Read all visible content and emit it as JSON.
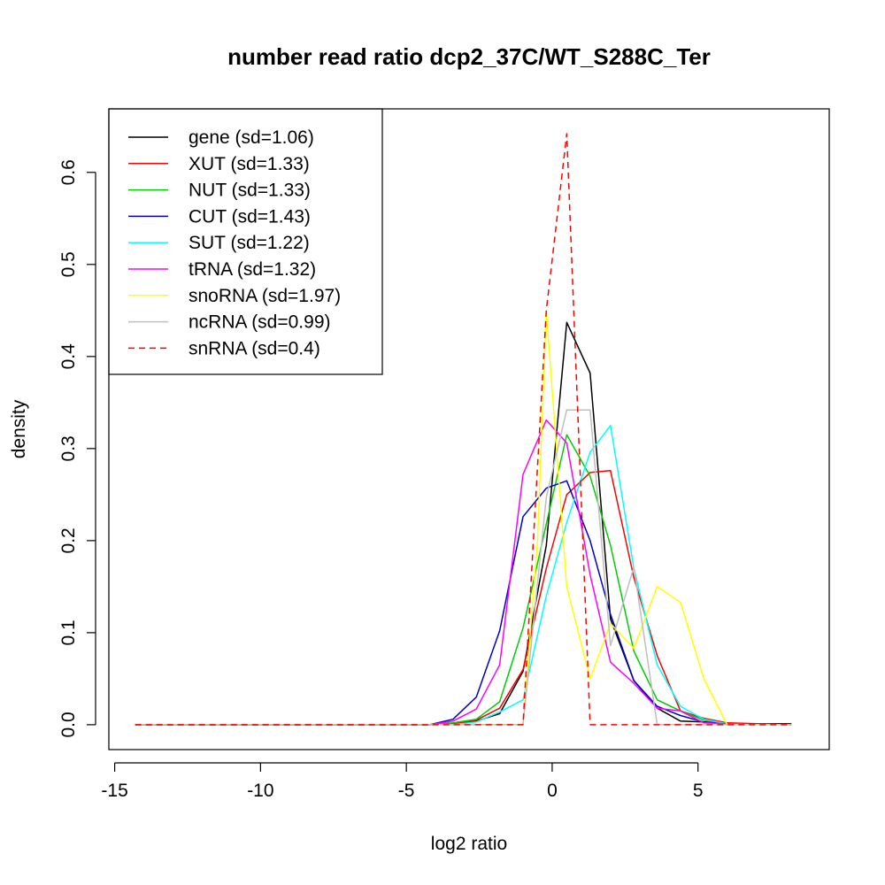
{
  "chart_data": {
    "type": "line",
    "title": "number read ratio dcp2_37C/WT_S288C_Ter",
    "xlabel": "log2 ratio",
    "ylabel": "density",
    "xlim": [
      -15.2,
      9.5
    ],
    "ylim": [
      -0.027,
      0.669
    ],
    "xticks": [
      -15,
      -10,
      -5,
      0,
      5
    ],
    "yticks": [
      0.0,
      0.1,
      0.2,
      0.3,
      0.4,
      0.5,
      0.6
    ],
    "xtick_labels": [
      "-15",
      "-10",
      "-5",
      "0",
      "5"
    ],
    "ytick_labels": [
      "0.0",
      "0.1",
      "0.2",
      "0.3",
      "0.4",
      "0.5",
      "0.6"
    ],
    "grid": false,
    "legend_position": "top-left",
    "series": [
      {
        "name": "gene (sd=1.06)",
        "color": "#000000",
        "dash": false,
        "x": [
          -14.3,
          -4.2,
          -3.4,
          -2.6,
          -1.8,
          -1.0,
          -0.2,
          0.5,
          1.3,
          2.0,
          2.8,
          3.6,
          4.4,
          5.2,
          6.0,
          8.2
        ],
        "y": [
          0.0,
          0.0,
          0.001,
          0.004,
          0.012,
          0.058,
          0.195,
          0.437,
          0.382,
          0.115,
          0.048,
          0.018,
          0.004,
          0.003,
          0.001,
          0.001
        ]
      },
      {
        "name": "XUT (sd=1.33)",
        "color": "#ff0000",
        "dash": false,
        "x": [
          -14.3,
          -4.2,
          -3.4,
          -2.6,
          -1.8,
          -1.0,
          -0.2,
          0.5,
          1.3,
          2.0,
          2.8,
          3.6,
          4.4,
          5.2,
          6.0,
          8.2
        ],
        "y": [
          0.0,
          0.0,
          0.001,
          0.005,
          0.018,
          0.06,
          0.17,
          0.25,
          0.274,
          0.276,
          0.16,
          0.075,
          0.015,
          0.007,
          0.002,
          0.0
        ]
      },
      {
        "name": "NUT (sd=1.33)",
        "color": "#00cd00",
        "dash": false,
        "x": [
          -14.3,
          -4.2,
          -3.4,
          -2.6,
          -1.8,
          -1.0,
          -0.2,
          0.5,
          1.3,
          2.0,
          2.8,
          3.6,
          4.4,
          5.2,
          6.0,
          8.2
        ],
        "y": [
          0.0,
          0.0,
          0.002,
          0.006,
          0.025,
          0.105,
          0.218,
          0.315,
          0.27,
          0.195,
          0.08,
          0.027,
          0.015,
          0.005,
          0.001,
          0.0
        ]
      },
      {
        "name": "CUT (sd=1.43)",
        "color": "#0000cd",
        "dash": false,
        "x": [
          -14.3,
          -4.2,
          -3.4,
          -2.6,
          -1.8,
          -1.0,
          -0.2,
          0.5,
          1.3,
          2.0,
          2.8,
          3.6,
          4.4,
          5.2,
          6.0,
          8.2
        ],
        "y": [
          0.0,
          0.0,
          0.006,
          0.03,
          0.102,
          0.226,
          0.257,
          0.265,
          0.2,
          0.12,
          0.048,
          0.02,
          0.01,
          0.003,
          0.001,
          0.001
        ]
      },
      {
        "name": "SUT (sd=1.22)",
        "color": "#00ffff",
        "dash": false,
        "x": [
          -14.3,
          -4.2,
          -3.4,
          -2.6,
          -1.8,
          -1.0,
          -0.2,
          0.5,
          1.3,
          2.0,
          2.8,
          3.6,
          4.4,
          5.2,
          6.0,
          8.2
        ],
        "y": [
          0.0,
          0.0,
          0.0,
          0.003,
          0.014,
          0.027,
          0.14,
          0.22,
          0.296,
          0.325,
          0.17,
          0.065,
          0.02,
          0.006,
          0.001,
          0.0
        ]
      },
      {
        "name": "tRNA (sd=1.32)",
        "color": "#ff00ff",
        "dash": false,
        "x": [
          -14.3,
          -4.2,
          -3.4,
          -2.6,
          -1.8,
          -1.0,
          -0.2,
          0.5,
          1.3,
          2.0,
          2.8,
          3.6,
          4.4,
          5.2,
          6.0,
          8.2
        ],
        "y": [
          0.0,
          0.0,
          0.004,
          0.017,
          0.065,
          0.272,
          0.331,
          0.306,
          0.163,
          0.068,
          0.045,
          0.018,
          0.015,
          0.002,
          0.001,
          0.0
        ]
      },
      {
        "name": "snoRNA (sd=1.97)",
        "color": "#ffff00",
        "dash": false,
        "x": [
          -14.3,
          -4.2,
          -3.4,
          -2.6,
          -1.8,
          -1.0,
          -0.5,
          -0.2,
          0.5,
          1.3,
          2.0,
          2.8,
          3.6,
          4.4,
          5.2,
          6.0,
          8.2
        ],
        "y": [
          0.0,
          0.0,
          0.0,
          0.0,
          0.0,
          0.0,
          0.2,
          0.45,
          0.15,
          0.05,
          0.11,
          0.083,
          0.15,
          0.133,
          0.05,
          0.0,
          0.0
        ]
      },
      {
        "name": "ncRNA (sd=0.99)",
        "color": "#bebebe",
        "dash": false,
        "x": [
          -14.3,
          -4.2,
          -3.4,
          -2.6,
          -1.8,
          -1.0,
          -0.2,
          0.5,
          1.3,
          2.0,
          2.8,
          3.6,
          4.4,
          5.2,
          6.0,
          8.2
        ],
        "y": [
          0.0,
          0.0,
          0.0,
          0.0,
          0.0,
          0.0,
          0.247,
          0.342,
          0.342,
          0.086,
          0.171,
          0.0,
          0.0,
          0.0,
          0.0,
          0.0
        ]
      },
      {
        "name": "snRNA (sd=0.4)",
        "color": "#ff0000",
        "dash": true,
        "x": [
          -14.3,
          -1.8,
          -1.0,
          -0.2,
          0.5,
          1.3,
          2.0,
          8.2
        ],
        "y": [
          0.0,
          0.0,
          0.0,
          0.45,
          0.642,
          0.0,
          0.0,
          0.0
        ]
      }
    ]
  }
}
